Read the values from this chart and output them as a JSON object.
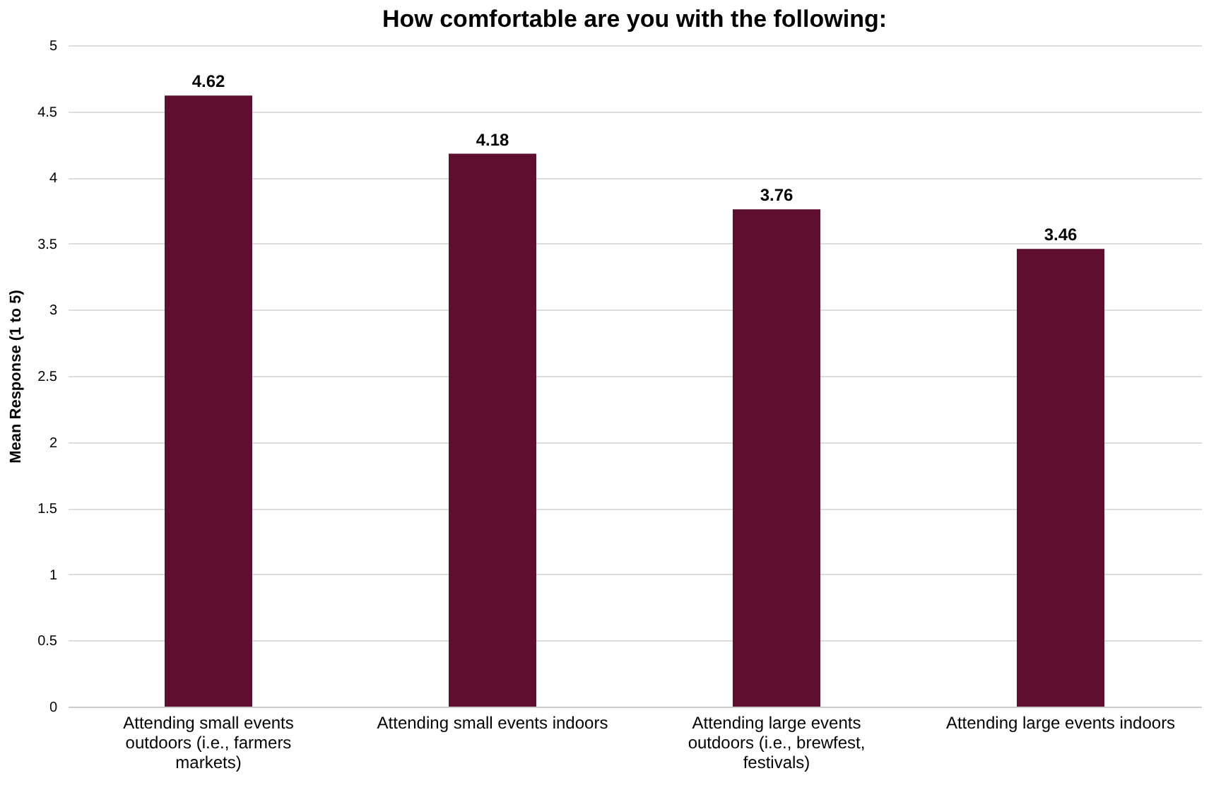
{
  "chart_data": {
    "type": "bar",
    "title": "How comfortable are you with the following:",
    "ylabel": "Mean Response (1 to 5)",
    "categories": [
      "Attending small events outdoors (i.e., farmers markets)",
      "Attending small events indoors",
      "Attending large events outdoors (i.e., brewfest, festivals)",
      "Attending large events indoors"
    ],
    "values": [
      4.62,
      4.18,
      3.76,
      3.46
    ],
    "color": "#5e0f30",
    "ylim": [
      0,
      5
    ],
    "yticks": [
      0,
      0.5,
      1,
      1.5,
      2,
      2.5,
      3,
      3.5,
      4,
      4.5,
      5
    ],
    "grid": "y",
    "data_labels": true
  }
}
